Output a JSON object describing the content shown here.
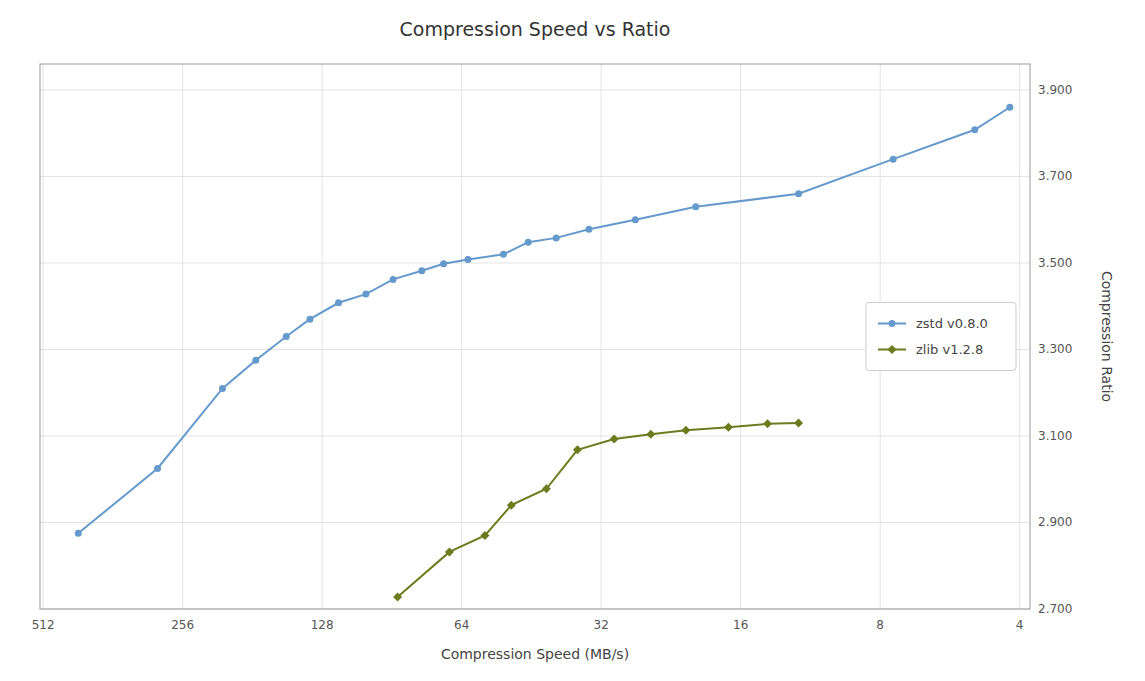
{
  "chart_data": {
    "type": "line",
    "title": "Compression Speed vs Ratio",
    "xlabel": "Compression Speed (MB/s)",
    "ylabel": "Compression Ratio",
    "series": [
      {
        "name": "zstd v0.8.0",
        "color": "#6699cc",
        "marker": "circle",
        "x": [
          430,
          290,
          210,
          178,
          153,
          136,
          118,
          103,
          90,
          78,
          70,
          62,
          52,
          46,
          40,
          34,
          27,
          20,
          12,
          7.5,
          5.0,
          4.2
        ],
        "values": [
          2.875,
          3.025,
          3.21,
          3.275,
          3.33,
          3.37,
          3.408,
          3.428,
          3.462,
          3.482,
          3.498,
          3.508,
          3.52,
          3.548,
          3.558,
          3.578,
          3.6,
          3.63,
          3.66,
          3.74,
          3.808,
          3.86
        ]
      },
      {
        "name": "zlib v1.2.8",
        "color": "#6b7c1e",
        "marker": "diamond",
        "x": [
          88,
          68,
          57,
          50,
          42,
          36,
          30,
          25,
          21,
          17,
          14,
          12
        ],
        "values": [
          2.728,
          2.832,
          2.87,
          2.94,
          2.978,
          3.068,
          3.093,
          3.104,
          3.113,
          3.12,
          3.128,
          3.13
        ]
      }
    ],
    "log": "x",
    "xlim": [
      520,
      3.8
    ],
    "xticks": [
      512,
      256,
      128,
      64,
      32,
      16,
      8,
      4
    ],
    "ylim": [
      2.7,
      3.96
    ],
    "yticks": [
      {
        "value": 2.7,
        "label": "2.700"
      },
      {
        "value": 2.9,
        "label": "2.900"
      },
      {
        "value": 3.1,
        "label": "3.100"
      },
      {
        "value": 3.3,
        "label": "3.300"
      },
      {
        "value": 3.5,
        "label": "3.500"
      },
      {
        "value": 3.7,
        "label": "3.700"
      },
      {
        "value": 3.9,
        "label": "3.900"
      }
    ],
    "grid": true,
    "legend": "right"
  }
}
